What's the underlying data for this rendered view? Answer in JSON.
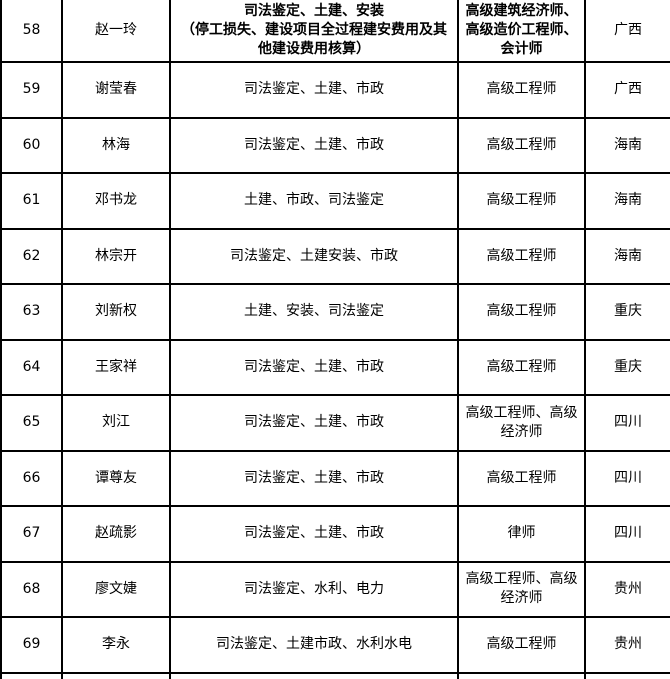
{
  "colors": {
    "background": "#ffffff",
    "border": "#000000",
    "text": "#000000"
  },
  "table": {
    "rows": [
      {
        "no": "58",
        "name": "赵一玲",
        "specialty_line1": "司法鉴定、土建、安装",
        "specialty_line2": "（停工损失、建设项目全过程建安费用及其他建设费用核算）",
        "title": "高级建筑经济师、高级造价工程师、会计师",
        "province": "广西"
      },
      {
        "no": "59",
        "name": "谢莹春",
        "specialty": "司法鉴定、土建、市政",
        "title": "高级工程师",
        "province": "广西"
      },
      {
        "no": "60",
        "name": "林海",
        "specialty": "司法鉴定、土建、市政",
        "title": "高级工程师",
        "province": "海南"
      },
      {
        "no": "61",
        "name": "邓书龙",
        "specialty": "土建、市政、司法鉴定",
        "title": "高级工程师",
        "province": "海南"
      },
      {
        "no": "62",
        "name": "林宗开",
        "specialty": "司法鉴定、土建安装、市政",
        "title": "高级工程师",
        "province": "海南"
      },
      {
        "no": "63",
        "name": "刘新权",
        "specialty": "土建、安装、司法鉴定",
        "title": "高级工程师",
        "province": "重庆"
      },
      {
        "no": "64",
        "name": "王家祥",
        "specialty": "司法鉴定、土建、市政",
        "title": "高级工程师",
        "province": "重庆"
      },
      {
        "no": "65",
        "name": "刘江",
        "specialty": "司法鉴定、土建、市政",
        "title": "高级工程师、高级经济师",
        "province": "四川"
      },
      {
        "no": "66",
        "name": "谭尊友",
        "specialty": "司法鉴定、土建、市政",
        "title": "高级工程师",
        "province": "四川"
      },
      {
        "no": "67",
        "name": "赵疏影",
        "specialty": "司法鉴定、土建、市政",
        "title": "律师",
        "province": "四川"
      },
      {
        "no": "68",
        "name": "廖文婕",
        "specialty": "司法鉴定、水利、电力",
        "title": "高级工程师、高级经济师",
        "province": "贵州"
      },
      {
        "no": "69",
        "name": "李永",
        "specialty": "司法鉴定、土建市政、水利水电",
        "title": "高级工程师",
        "province": "贵州"
      }
    ]
  }
}
